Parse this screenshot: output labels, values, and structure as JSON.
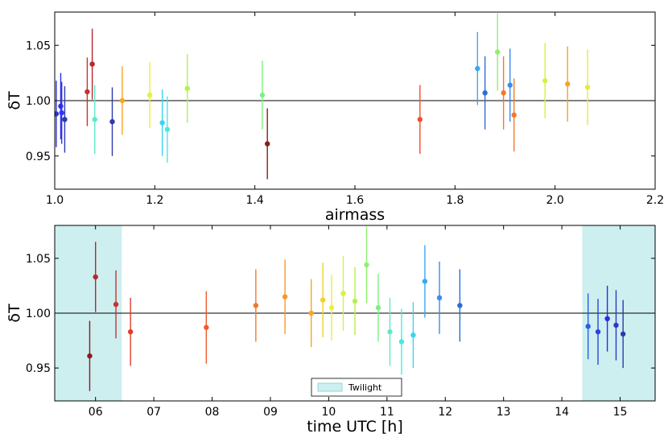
{
  "chart_data": [
    {
      "type": "scatter",
      "title": "",
      "xlabel": "airmass",
      "ylabel": "δT",
      "xlim": [
        1.0,
        2.2
      ],
      "ylim": [
        0.92,
        1.08
      ],
      "reference_line": 1.0,
      "x_ticks": [
        1.0,
        1.2,
        1.4,
        1.6,
        1.8,
        2.0,
        2.2
      ],
      "x_tick_labels": [
        "1.0",
        "1.2",
        "1.4",
        "1.6",
        "1.8",
        "2.0",
        "2.2"
      ],
      "y_ticks": [
        0.95,
        1.0,
        1.05
      ],
      "y_tick_labels": [
        "0.95",
        "1.00",
        "1.05"
      ],
      "points": [
        {
          "x": 1.003,
          "y": 0.988,
          "err": 0.03,
          "color": "#2a34c8"
        },
        {
          "x": 1.012,
          "y": 0.995,
          "err": 0.03,
          "color": "#2b2bea"
        },
        {
          "x": 1.014,
          "y": 0.989,
          "err": 0.028,
          "color": "#3434ff"
        },
        {
          "x": 1.02,
          "y": 0.983,
          "err": 0.03,
          "color": "#2d3aa8"
        },
        {
          "x": 1.065,
          "y": 1.008,
          "err": 0.031,
          "color": "#c83232"
        },
        {
          "x": 1.075,
          "y": 1.033,
          "err": 0.032,
          "color": "#b8282d"
        },
        {
          "x": 1.08,
          "y": 0.983,
          "err": 0.031,
          "color": "#5fe8c8"
        },
        {
          "x": 1.115,
          "y": 0.981,
          "err": 0.031,
          "color": "#2d3aa8"
        },
        {
          "x": 1.135,
          "y": 1.0,
          "err": 0.031,
          "color": "#f5a623"
        },
        {
          "x": 1.19,
          "y": 1.005,
          "err": 0.03,
          "color": "#e8f03c"
        },
        {
          "x": 1.215,
          "y": 0.98,
          "err": 0.03,
          "color": "#3ad4f0"
        },
        {
          "x": 1.225,
          "y": 0.974,
          "err": 0.03,
          "color": "#4ae8e0"
        },
        {
          "x": 1.265,
          "y": 1.011,
          "err": 0.031,
          "color": "#b4f050"
        },
        {
          "x": 1.415,
          "y": 1.005,
          "err": 0.031,
          "color": "#7ef082"
        },
        {
          "x": 1.425,
          "y": 0.961,
          "err": 0.032,
          "color": "#8c1c1c"
        },
        {
          "x": 1.73,
          "y": 0.983,
          "err": 0.031,
          "color": "#f0502d"
        },
        {
          "x": 1.845,
          "y": 1.029,
          "err": 0.033,
          "color": "#3aa8f0"
        },
        {
          "x": 1.86,
          "y": 1.007,
          "err": 0.033,
          "color": "#2a6ed0"
        },
        {
          "x": 1.885,
          "y": 1.044,
          "err": 0.035,
          "color": "#90f070"
        },
        {
          "x": 1.897,
          "y": 1.007,
          "err": 0.033,
          "color": "#f07a2d"
        },
        {
          "x": 1.91,
          "y": 1.014,
          "err": 0.033,
          "color": "#3a8cf0"
        },
        {
          "x": 1.918,
          "y": 0.987,
          "err": 0.033,
          "color": "#f07a2d"
        },
        {
          "x": 1.98,
          "y": 1.018,
          "err": 0.034,
          "color": "#d8f040"
        },
        {
          "x": 2.025,
          "y": 1.015,
          "err": 0.034,
          "color": "#f5a623"
        },
        {
          "x": 2.065,
          "y": 1.012,
          "err": 0.034,
          "color": "#e8e840"
        }
      ]
    },
    {
      "type": "scatter",
      "title": "",
      "xlabel": "time UTC [h]",
      "ylabel": "δT",
      "xlim": [
        5.3,
        15.6
      ],
      "ylim": [
        0.92,
        1.08
      ],
      "reference_line": 1.0,
      "x_ticks": [
        6,
        7,
        8,
        9,
        10,
        11,
        12,
        13,
        14,
        15
      ],
      "x_tick_labels": [
        "06",
        "07",
        "08",
        "09",
        "10",
        "11",
        "12",
        "13",
        "14",
        "15"
      ],
      "y_ticks": [
        0.95,
        1.0,
        1.05
      ],
      "y_tick_labels": [
        "0.95",
        "1.00",
        "1.05"
      ],
      "shaded_regions": [
        {
          "x0": 5.3,
          "x1": 6.45,
          "color": "#cdeff0"
        },
        {
          "x0": 14.35,
          "x1": 15.6,
          "color": "#cdeff0"
        }
      ],
      "legend": {
        "label": "Twilight",
        "color": "#cdeff0",
        "placement": "lower-center"
      },
      "points": [
        {
          "x": 5.9,
          "y": 0.961,
          "err": 0.032,
          "color": "#8c1c1c"
        },
        {
          "x": 6.0,
          "y": 1.033,
          "err": 0.032,
          "color": "#b8282d"
        },
        {
          "x": 6.35,
          "y": 1.008,
          "err": 0.031,
          "color": "#c83232"
        },
        {
          "x": 6.6,
          "y": 0.983,
          "err": 0.031,
          "color": "#e03c2d"
        },
        {
          "x": 7.9,
          "y": 0.987,
          "err": 0.033,
          "color": "#f05a2d"
        },
        {
          "x": 8.75,
          "y": 1.007,
          "err": 0.033,
          "color": "#f07a2d"
        },
        {
          "x": 9.25,
          "y": 1.015,
          "err": 0.034,
          "color": "#f59a30"
        },
        {
          "x": 9.7,
          "y": 1.0,
          "err": 0.031,
          "color": "#f5a623"
        },
        {
          "x": 9.9,
          "y": 1.012,
          "err": 0.034,
          "color": "#f0d030"
        },
        {
          "x": 10.05,
          "y": 1.005,
          "err": 0.03,
          "color": "#e8f03c"
        },
        {
          "x": 10.25,
          "y": 1.018,
          "err": 0.034,
          "color": "#d8f040"
        },
        {
          "x": 10.45,
          "y": 1.011,
          "err": 0.031,
          "color": "#b4f050"
        },
        {
          "x": 10.65,
          "y": 1.044,
          "err": 0.035,
          "color": "#90f070"
        },
        {
          "x": 10.85,
          "y": 1.005,
          "err": 0.031,
          "color": "#7ef082"
        },
        {
          "x": 11.05,
          "y": 0.983,
          "err": 0.031,
          "color": "#5fe8c8"
        },
        {
          "x": 11.25,
          "y": 0.974,
          "err": 0.03,
          "color": "#4ae8e0"
        },
        {
          "x": 11.45,
          "y": 0.98,
          "err": 0.03,
          "color": "#3ad4f0"
        },
        {
          "x": 11.65,
          "y": 1.029,
          "err": 0.033,
          "color": "#3aa8f0"
        },
        {
          "x": 11.9,
          "y": 1.014,
          "err": 0.033,
          "color": "#3a8cf0"
        },
        {
          "x": 12.25,
          "y": 1.007,
          "err": 0.033,
          "color": "#2a6ed0"
        },
        {
          "x": 14.45,
          "y": 0.988,
          "err": 0.03,
          "color": "#2a5ce8"
        },
        {
          "x": 14.62,
          "y": 0.983,
          "err": 0.03,
          "color": "#2a44e0"
        },
        {
          "x": 14.78,
          "y": 0.995,
          "err": 0.03,
          "color": "#2b2bea"
        },
        {
          "x": 14.93,
          "y": 0.989,
          "err": 0.032,
          "color": "#3434c8"
        },
        {
          "x": 15.05,
          "y": 0.981,
          "err": 0.031,
          "color": "#2d3aa8"
        }
      ]
    }
  ]
}
